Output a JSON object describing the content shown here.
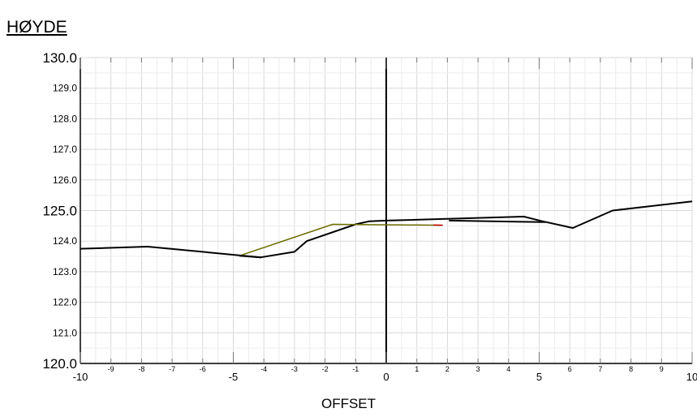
{
  "chart_data": {
    "type": "line",
    "title": "",
    "ylabel": "HØYDE",
    "xlabel": "OFFSET",
    "xlim": [
      -10,
      10
    ],
    "ylim": [
      120,
      130
    ],
    "grid": true,
    "x_major_ticks": [
      {
        "value": -10,
        "label": "-10"
      },
      {
        "value": -5,
        "label": "-5"
      },
      {
        "value": 0,
        "label": "0"
      },
      {
        "value": 5,
        "label": "5"
      },
      {
        "value": 10,
        "label": "10"
      }
    ],
    "x_minor_ticks": [
      {
        "value": -9,
        "label": "-9"
      },
      {
        "value": -8,
        "label": "-8"
      },
      {
        "value": -7,
        "label": "-7"
      },
      {
        "value": -6,
        "label": "-6"
      },
      {
        "value": -4,
        "label": "-4"
      },
      {
        "value": -3,
        "label": "-3"
      },
      {
        "value": -2,
        "label": "-2"
      },
      {
        "value": -1,
        "label": "-1"
      },
      {
        "value": 1,
        "label": "1"
      },
      {
        "value": 2,
        "label": "2"
      },
      {
        "value": 3,
        "label": "3"
      },
      {
        "value": 4,
        "label": "4"
      },
      {
        "value": 6,
        "label": "6"
      },
      {
        "value": 7,
        "label": "7"
      },
      {
        "value": 8,
        "label": "8"
      },
      {
        "value": 9,
        "label": "9"
      }
    ],
    "y_major_ticks": [
      {
        "value": 120,
        "label": "120.0"
      },
      {
        "value": 125,
        "label": "125.0"
      },
      {
        "value": 130,
        "label": "130.0"
      }
    ],
    "y_minor_ticks": [
      {
        "value": 121,
        "label": "121.0"
      },
      {
        "value": 122,
        "label": "122.0"
      },
      {
        "value": 123,
        "label": "123.0"
      },
      {
        "value": 124,
        "label": "124.0"
      },
      {
        "value": 126,
        "label": "126.0"
      },
      {
        "value": 127,
        "label": "127.0"
      },
      {
        "value": 128,
        "label": "128.0"
      },
      {
        "value": 129,
        "label": "129.0"
      }
    ],
    "series": [
      {
        "color": "#000000",
        "width": 2,
        "points": [
          [
            -10,
            123.75
          ],
          [
            -7.8,
            123.82
          ],
          [
            -4.1,
            123.47
          ],
          [
            -3.0,
            123.65
          ],
          [
            -2.6,
            124.0
          ],
          [
            -1.0,
            124.55
          ],
          [
            -0.55,
            124.65
          ],
          [
            0,
            124.67
          ],
          [
            4.5,
            124.8
          ],
          [
            5.1,
            124.65
          ],
          [
            6.1,
            124.43
          ],
          [
            7.4,
            125.0
          ],
          [
            10,
            125.3
          ]
        ]
      },
      {
        "color": "#000000",
        "width": 2,
        "points": [
          [
            2.05,
            124.67
          ],
          [
            5.2,
            124.62
          ]
        ]
      },
      {
        "color": "#6b6b00",
        "width": 1.5,
        "points": [
          [
            -4.8,
            123.52
          ],
          [
            -1.75,
            124.55
          ],
          [
            1.8,
            124.52
          ]
        ]
      },
      {
        "color": "#000000",
        "width": 2,
        "points": [
          [
            -4.8,
            123.52
          ],
          [
            -4.1,
            123.47
          ]
        ]
      },
      {
        "color": "#cc0000",
        "width": 1.5,
        "points": [
          [
            1.55,
            124.525
          ],
          [
            1.85,
            124.52
          ]
        ]
      }
    ]
  }
}
